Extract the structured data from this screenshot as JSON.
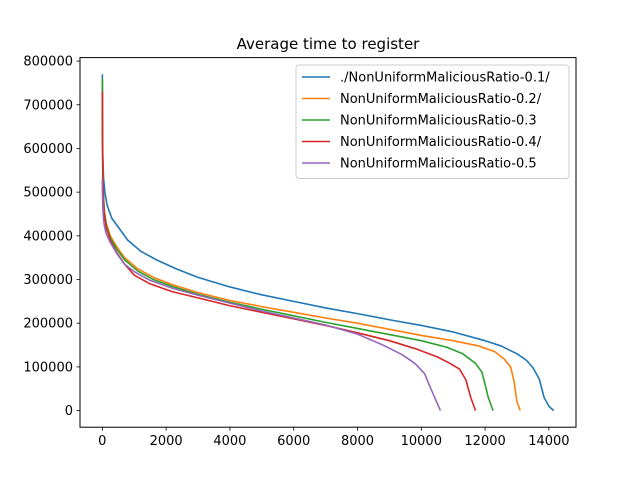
{
  "chart_data": {
    "type": "line",
    "title": "Average time to register",
    "xlabel": "",
    "ylabel": "",
    "xlim": [
      -700,
      14850
    ],
    "ylim": [
      -38000,
      808000
    ],
    "xticks": [
      0,
      2000,
      4000,
      6000,
      8000,
      10000,
      12000,
      14000
    ],
    "xtick_labels": [
      "0",
      "2000",
      "4000",
      "6000",
      "8000",
      "10000",
      "12000",
      "14000"
    ],
    "yticks": [
      0,
      100000,
      200000,
      300000,
      400000,
      500000,
      600000,
      700000,
      800000
    ],
    "ytick_labels": [
      "0",
      "100000",
      "200000",
      "300000",
      "400000",
      "500000",
      "600000",
      "700000",
      "800000"
    ],
    "grid": false,
    "legend_position": "upper right",
    "series": [
      {
        "name": "./NonUniformMaliciousRatio-0.1/",
        "color": "#1f77b4",
        "points": [
          [
            0,
            770000
          ],
          [
            5,
            650000
          ],
          [
            15,
            580000
          ],
          [
            40,
            530000
          ],
          [
            80,
            500000
          ],
          [
            150,
            470000
          ],
          [
            300,
            440000
          ],
          [
            500,
            420000
          ],
          [
            800,
            390000
          ],
          [
            1200,
            365000
          ],
          [
            1700,
            345000
          ],
          [
            2300,
            325000
          ],
          [
            3000,
            305000
          ],
          [
            4000,
            283000
          ],
          [
            5000,
            265000
          ],
          [
            6000,
            250000
          ],
          [
            7000,
            235000
          ],
          [
            8000,
            222000
          ],
          [
            9000,
            208000
          ],
          [
            10000,
            195000
          ],
          [
            11000,
            180000
          ],
          [
            12000,
            160000
          ],
          [
            12500,
            148000
          ],
          [
            13000,
            130000
          ],
          [
            13300,
            115000
          ],
          [
            13500,
            98000
          ],
          [
            13700,
            72000
          ],
          [
            13850,
            30000
          ],
          [
            14000,
            10000
          ],
          [
            14150,
            0
          ]
        ]
      },
      {
        "name": "NonUniformMaliciousRatio-0.2/",
        "color": "#ff7f0e",
        "points": [
          [
            0,
            760000
          ],
          [
            5,
            640000
          ],
          [
            15,
            560000
          ],
          [
            30,
            500000
          ],
          [
            60,
            460000
          ],
          [
            120,
            430000
          ],
          [
            250,
            400000
          ],
          [
            450,
            375000
          ],
          [
            700,
            350000
          ],
          [
            1100,
            325000
          ],
          [
            1600,
            305000
          ],
          [
            2200,
            288000
          ],
          [
            3000,
            270000
          ],
          [
            4000,
            252000
          ],
          [
            5000,
            238000
          ],
          [
            6000,
            225000
          ],
          [
            7000,
            212000
          ],
          [
            8000,
            200000
          ],
          [
            9000,
            186000
          ],
          [
            10000,
            172000
          ],
          [
            11000,
            160000
          ],
          [
            11800,
            148000
          ],
          [
            12300,
            135000
          ],
          [
            12600,
            118000
          ],
          [
            12800,
            100000
          ],
          [
            12900,
            70000
          ],
          [
            13000,
            20000
          ],
          [
            13100,
            0
          ]
        ]
      },
      {
        "name": "NonUniformMaliciousRatio-0.3",
        "color": "#2ca02c",
        "points": [
          [
            0,
            760000
          ],
          [
            5,
            640000
          ],
          [
            15,
            560000
          ],
          [
            30,
            500000
          ],
          [
            60,
            455000
          ],
          [
            120,
            425000
          ],
          [
            250,
            395000
          ],
          [
            450,
            370000
          ],
          [
            700,
            345000
          ],
          [
            1100,
            320000
          ],
          [
            1600,
            300000
          ],
          [
            2200,
            284000
          ],
          [
            3000,
            266000
          ],
          [
            4000,
            248000
          ],
          [
            5000,
            232000
          ],
          [
            6000,
            217000
          ],
          [
            7000,
            202000
          ],
          [
            8000,
            188000
          ],
          [
            9000,
            174000
          ],
          [
            10000,
            160000
          ],
          [
            10800,
            145000
          ],
          [
            11300,
            130000
          ],
          [
            11700,
            108000
          ],
          [
            11900,
            88000
          ],
          [
            12000,
            60000
          ],
          [
            12100,
            30000
          ],
          [
            12250,
            0
          ]
        ]
      },
      {
        "name": "NonUniformMaliciousRatio-0.4/",
        "color": "#d62728",
        "points": [
          [
            0,
            730000
          ],
          [
            5,
            620000
          ],
          [
            15,
            550000
          ],
          [
            30,
            490000
          ],
          [
            60,
            450000
          ],
          [
            120,
            420000
          ],
          [
            250,
            390000
          ],
          [
            450,
            362000
          ],
          [
            700,
            335000
          ],
          [
            1000,
            310000
          ],
          [
            1500,
            290000
          ],
          [
            2200,
            272000
          ],
          [
            3000,
            258000
          ],
          [
            4000,
            240000
          ],
          [
            5000,
            225000
          ],
          [
            6000,
            210000
          ],
          [
            7000,
            195000
          ],
          [
            8000,
            178000
          ],
          [
            9000,
            160000
          ],
          [
            9800,
            142000
          ],
          [
            10500,
            123000
          ],
          [
            10900,
            108000
          ],
          [
            11200,
            95000
          ],
          [
            11400,
            70000
          ],
          [
            11550,
            30000
          ],
          [
            11700,
            0
          ]
        ]
      },
      {
        "name": "NonUniformMaliciousRatio-0.5",
        "color": "#9467bd",
        "points": [
          [
            0,
            530000
          ],
          [
            5,
            500000
          ],
          [
            15,
            470000
          ],
          [
            30,
            445000
          ],
          [
            60,
            425000
          ],
          [
            120,
            405000
          ],
          [
            250,
            385000
          ],
          [
            450,
            360000
          ],
          [
            700,
            335000
          ],
          [
            1000,
            318000
          ],
          [
            1500,
            298000
          ],
          [
            2200,
            280000
          ],
          [
            3000,
            264000
          ],
          [
            4000,
            246000
          ],
          [
            5000,
            228000
          ],
          [
            6000,
            212000
          ],
          [
            7000,
            196000
          ],
          [
            8000,
            175000
          ],
          [
            8800,
            150000
          ],
          [
            9400,
            128000
          ],
          [
            9800,
            108000
          ],
          [
            10100,
            85000
          ],
          [
            10300,
            50000
          ],
          [
            10450,
            25000
          ],
          [
            10600,
            0
          ]
        ]
      }
    ]
  }
}
